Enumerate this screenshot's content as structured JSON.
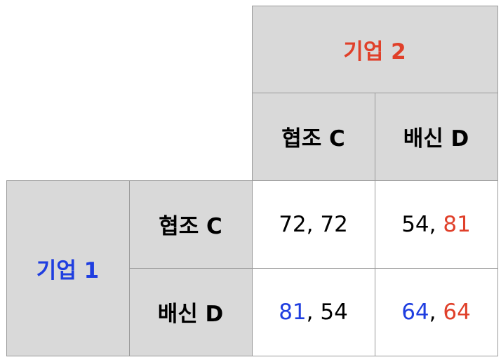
{
  "colors": {
    "firm1": "#1f3ee0",
    "firm2": "#e0402a",
    "header_bg": "#d9d9d9",
    "grid": "#9a9a9a"
  },
  "firm2": {
    "label": "기업 2",
    "strategies": [
      "협조 C",
      "배신 D"
    ]
  },
  "firm1": {
    "label": "기업 1",
    "strategies": [
      "협조 C",
      "배신 D"
    ]
  },
  "payoffs": [
    [
      {
        "p1": "72",
        "p2": "72",
        "sep": ", "
      },
      {
        "p1": "54",
        "p2": "81",
        "sep": ", "
      }
    ],
    [
      {
        "p1": "81",
        "p2": "54",
        "sep": ", "
      },
      {
        "p1": "64",
        "p2": "64",
        "sep": ", "
      }
    ]
  ]
}
